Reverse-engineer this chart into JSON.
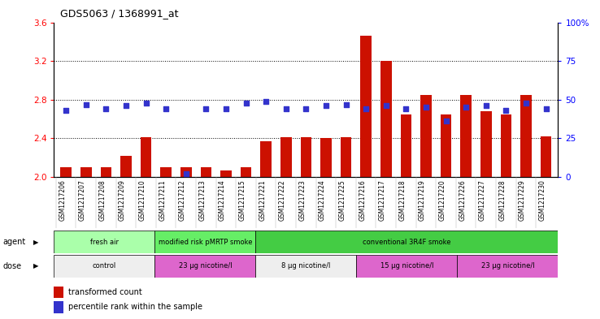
{
  "title": "GDS5063 / 1368991_at",
  "samples": [
    "GSM1217206",
    "GSM1217207",
    "GSM1217208",
    "GSM1217209",
    "GSM1217210",
    "GSM1217211",
    "GSM1217212",
    "GSM1217213",
    "GSM1217214",
    "GSM1217215",
    "GSM1217221",
    "GSM1217222",
    "GSM1217223",
    "GSM1217224",
    "GSM1217225",
    "GSM1217216",
    "GSM1217217",
    "GSM1217218",
    "GSM1217219",
    "GSM1217220",
    "GSM1217226",
    "GSM1217227",
    "GSM1217228",
    "GSM1217229",
    "GSM1217230"
  ],
  "red_values": [
    2.1,
    2.1,
    2.1,
    2.22,
    2.41,
    2.1,
    2.1,
    2.1,
    2.07,
    2.1,
    2.37,
    2.41,
    2.41,
    2.4,
    2.41,
    3.46,
    3.2,
    2.65,
    2.85,
    2.65,
    2.85,
    2.68,
    2.65,
    2.85,
    2.42
  ],
  "blue_values": [
    43,
    47,
    44,
    46,
    48,
    44,
    2,
    44,
    44,
    48,
    49,
    44,
    44,
    46,
    47,
    44,
    46,
    44,
    45,
    36,
    45,
    46,
    43,
    48,
    44
  ],
  "ylim_left": [
    2.0,
    3.6
  ],
  "ylim_right": [
    0,
    100
  ],
  "yticks_left": [
    2.0,
    2.4,
    2.8,
    3.2,
    3.6
  ],
  "yticks_right": [
    0,
    25,
    50,
    75,
    100
  ],
  "grid_values": [
    2.4,
    2.8,
    3.2
  ],
  "bar_color": "#CC1100",
  "dot_color": "#3333CC",
  "agent_groups": [
    {
      "label": "fresh air",
      "start": 0,
      "end": 5,
      "color": "#AAFFAA"
    },
    {
      "label": "modified risk pMRTP smoke",
      "start": 5,
      "end": 10,
      "color": "#66EE66"
    },
    {
      "label": "conventional 3R4F smoke",
      "start": 10,
      "end": 25,
      "color": "#44CC44"
    }
  ],
  "dose_groups": [
    {
      "label": "control",
      "start": 0,
      "end": 5,
      "color": "#EEEEEE"
    },
    {
      "label": "23 µg nicotine/l",
      "start": 5,
      "end": 10,
      "color": "#DD66CC"
    },
    {
      "label": "8 µg nicotine/l",
      "start": 10,
      "end": 15,
      "color": "#EEEEEE"
    },
    {
      "label": "15 µg nicotine/l",
      "start": 15,
      "end": 20,
      "color": "#DD66CC"
    },
    {
      "label": "23 µg nicotine/l",
      "start": 20,
      "end": 25,
      "color": "#DD66CC"
    }
  ],
  "legend_items": [
    {
      "label": "transformed count",
      "color": "#CC1100"
    },
    {
      "label": "percentile rank within the sample",
      "color": "#3333CC"
    }
  ],
  "bg_color": "#FFFFFF",
  "plot_bg": "#FFFFFF"
}
